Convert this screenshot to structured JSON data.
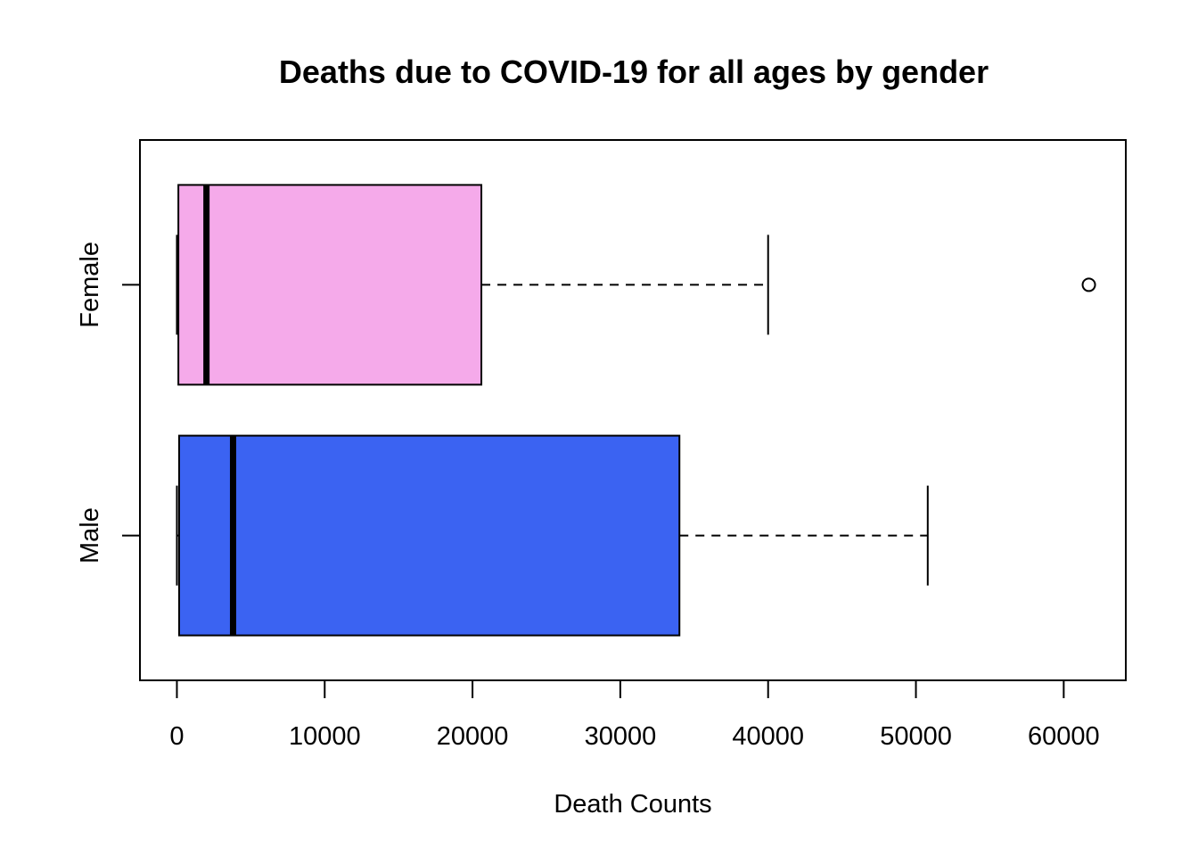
{
  "chart_data": {
    "type": "boxplot",
    "orientation": "horizontal",
    "title": "Deaths due to COVID-19 for all ages by gender",
    "xlabel": "Death Counts",
    "ylabel": "",
    "xlim": [
      -2500,
      64200
    ],
    "x_ticks": [
      0,
      10000,
      20000,
      30000,
      40000,
      50000,
      60000
    ],
    "x_tick_labels": [
      "0",
      "10000",
      "20000",
      "30000",
      "40000",
      "50000",
      "60000"
    ],
    "grid": false,
    "legend": "none",
    "categories": [
      "Female",
      "Male"
    ],
    "series": [
      {
        "category": "Female",
        "color": "#F5AAEA",
        "whisker_low": 0,
        "q1": 100,
        "median": 2000,
        "q3": 20600,
        "whisker_high": 40000,
        "outliers": [
          61700
        ]
      },
      {
        "category": "Male",
        "color": "#3B63F2",
        "whisker_low": 0,
        "q1": 150,
        "median": 3800,
        "q3": 34000,
        "whisker_high": 50800,
        "outliers": []
      }
    ]
  }
}
